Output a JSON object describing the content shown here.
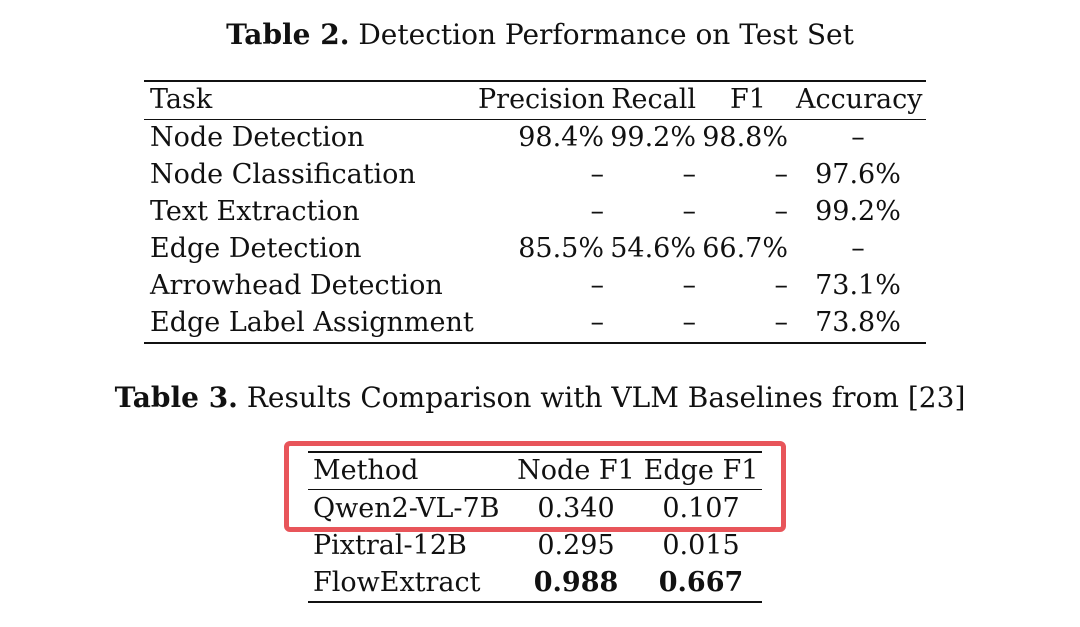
{
  "table2": {
    "caption_label": "Table 2.",
    "caption_text": " Detection Performance on Test Set",
    "headers": [
      "Task",
      "Precision",
      "Recall",
      "F1",
      "Accuracy"
    ],
    "rows": [
      [
        "Node Detection",
        "98.4%",
        "99.2%",
        "98.8%",
        "–"
      ],
      [
        "Node Classification",
        "–",
        "–",
        "–",
        "97.6%"
      ],
      [
        "Text Extraction",
        "–",
        "–",
        "–",
        "99.2%"
      ],
      [
        "Edge Detection",
        "85.5%",
        "54.6%",
        "66.7%",
        "–"
      ],
      [
        "Arrowhead Detection",
        "–",
        "–",
        "–",
        "73.1%"
      ],
      [
        "Edge Label Assignment",
        "–",
        "–",
        "–",
        "73.8%"
      ]
    ]
  },
  "table3": {
    "caption_label": "Table 3.",
    "caption_text": " Results Comparison with VLM Baselines from [",
    "caption_cite": "23",
    "caption_end": "]",
    "headers": [
      "Method",
      "Node F1",
      "Edge F1"
    ],
    "rows": [
      [
        "Qwen2-VL-7B",
        "0.340",
        "0.107"
      ],
      [
        "Pixtral-12B",
        "0.295",
        "0.015"
      ],
      [
        "FlowExtract",
        "0.988",
        "0.667"
      ]
    ],
    "highlight_color": "#e8555a"
  }
}
